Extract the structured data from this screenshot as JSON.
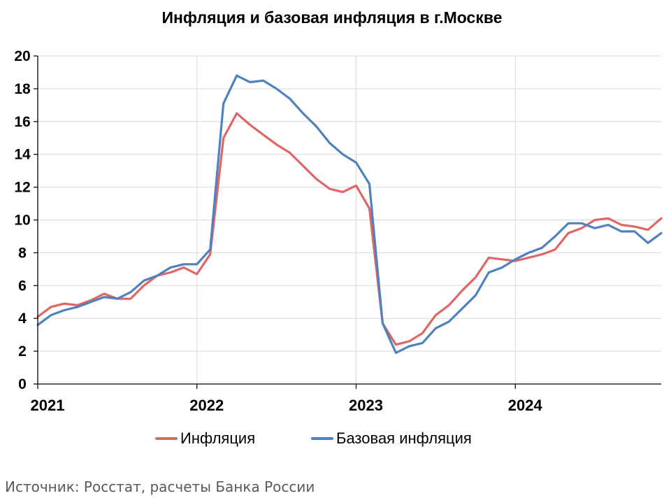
{
  "chart_data": {
    "type": "line",
    "title": "Инфляция и базовая инфляция в г.Москве",
    "xlabel": "",
    "ylabel": "",
    "ylim": [
      0,
      20
    ],
    "yticks": [
      "0",
      "2",
      "4",
      "6",
      "8",
      "10",
      "12",
      "14",
      "16",
      "18",
      "20"
    ],
    "x_tick_labels": [
      "2021",
      "2022",
      "2023",
      "2024"
    ],
    "x_start": "2021-01",
    "x_end": "2024-12",
    "x": [
      "2021-01",
      "2021-02",
      "2021-03",
      "2021-04",
      "2021-05",
      "2021-06",
      "2021-07",
      "2021-08",
      "2021-09",
      "2021-10",
      "2021-11",
      "2021-12",
      "2022-01",
      "2022-02",
      "2022-03",
      "2022-04",
      "2022-05",
      "2022-06",
      "2022-07",
      "2022-08",
      "2022-09",
      "2022-10",
      "2022-11",
      "2022-12",
      "2023-01",
      "2023-02",
      "2023-03",
      "2023-04",
      "2023-05",
      "2023-06",
      "2023-07",
      "2023-08",
      "2023-09",
      "2023-10",
      "2023-11",
      "2023-12",
      "2024-01",
      "2024-02",
      "2024-03",
      "2024-04",
      "2024-05",
      "2024-06",
      "2024-07",
      "2024-08",
      "2024-09",
      "2024-10",
      "2024-11",
      "2024-12"
    ],
    "grid": "horizontal",
    "legend_position": "bottom",
    "series": [
      {
        "name": "Инфляция",
        "color": "#E06666",
        "values": [
          4.1,
          4.7,
          4.9,
          4.8,
          5.1,
          5.5,
          5.2,
          5.2,
          6.0,
          6.6,
          6.8,
          7.1,
          6.7,
          7.9,
          15.0,
          16.5,
          15.8,
          15.2,
          14.6,
          14.1,
          13.3,
          12.5,
          11.9,
          11.7,
          12.1,
          10.7,
          3.7,
          2.4,
          2.6,
          3.1,
          4.2,
          4.8,
          5.7,
          6.5,
          7.7,
          7.6,
          7.5,
          7.7,
          7.9,
          8.2,
          9.2,
          9.5,
          10.0,
          10.1,
          9.7,
          9.6,
          9.4,
          10.1
        ]
      },
      {
        "name": "Базовая инфляция",
        "color": "#4F81BD",
        "values": [
          3.6,
          4.2,
          4.5,
          4.7,
          5.0,
          5.3,
          5.2,
          5.6,
          6.3,
          6.6,
          7.1,
          7.3,
          7.3,
          8.2,
          17.1,
          18.8,
          18.4,
          18.5,
          18.0,
          17.4,
          16.5,
          15.7,
          14.7,
          14.0,
          13.5,
          12.2,
          3.7,
          1.9,
          2.3,
          2.5,
          3.4,
          3.8,
          4.6,
          5.4,
          6.8,
          7.1,
          7.6,
          8.0,
          8.3,
          9.0,
          9.8,
          9.8,
          9.5,
          9.7,
          9.3,
          9.3,
          8.6,
          9.2
        ]
      }
    ]
  },
  "source_note": "Источник: Росстат, расчеты Банка России"
}
